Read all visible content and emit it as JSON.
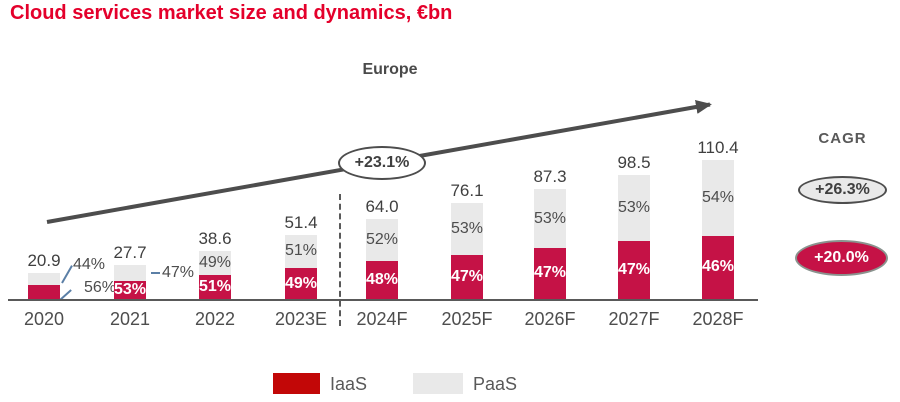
{
  "title": "Cloud services market size and dynamics, €bn",
  "region_label": "Europe",
  "growth_badge": "+23.1%",
  "cagr": {
    "title": "CAGR",
    "paas_value": "+26.3%",
    "iaas_value": "+20.0%"
  },
  "legend": {
    "iaas": "IaaS",
    "paas": "PaaS"
  },
  "colors": {
    "title_red": "#e4002b",
    "iaas_bar": "#c51246",
    "iaas_legend": "#c20707",
    "paas_fill": "#e9e9e9",
    "axis_gray": "#595959",
    "arrow_gray": "#4d4d4d",
    "text_dark": "#3f3f3f",
    "text_gray": "#4d4d4d",
    "leader_blue": "#5b7fa6"
  },
  "chart_data": {
    "type": "bar",
    "stacked": true,
    "unit": "€bn",
    "title": "Cloud services market size and dynamics, €bn",
    "subtitle": "Europe",
    "categories": [
      "2020",
      "2021",
      "2022",
      "2023E",
      "2024F",
      "2025F",
      "2026F",
      "2027F",
      "2028F"
    ],
    "totals": [
      20.9,
      27.7,
      38.6,
      51.4,
      64.0,
      76.1,
      87.3,
      98.5,
      110.4
    ],
    "total_labels": [
      "20.9",
      "27.7",
      "38.6",
      "51.4",
      "64.0",
      "76.1",
      "87.3",
      "98.5",
      "110.4"
    ],
    "series": [
      {
        "name": "IaaS",
        "share_pct": [
          56,
          53,
          51,
          49,
          48,
          47,
          47,
          47,
          46
        ]
      },
      {
        "name": "PaaS",
        "share_pct": [
          44,
          47,
          49,
          51,
          52,
          53,
          53,
          53,
          54
        ]
      }
    ],
    "iaas_pct_labels": [
      "56%",
      "53%",
      "51%",
      "49%",
      "48%",
      "47%",
      "47%",
      "47%",
      "46%"
    ],
    "paas_pct_labels": [
      "44%",
      "47%",
      "49%",
      "51%",
      "52%",
      "53%",
      "53%",
      "53%",
      "54%"
    ],
    "label_layout": [
      "callout-both",
      "callout-paas",
      "inside",
      "inside",
      "inside",
      "inside",
      "inside",
      "inside",
      "inside"
    ],
    "annotations": {
      "trend_arrow_growth": "+23.1%",
      "cagr_paas": "+26.3%",
      "cagr_iaas": "+20.0%",
      "forecast_divider_after": "2023E"
    },
    "ylim": [
      0,
      118
    ],
    "grid": false,
    "legend_position": "bottom"
  }
}
